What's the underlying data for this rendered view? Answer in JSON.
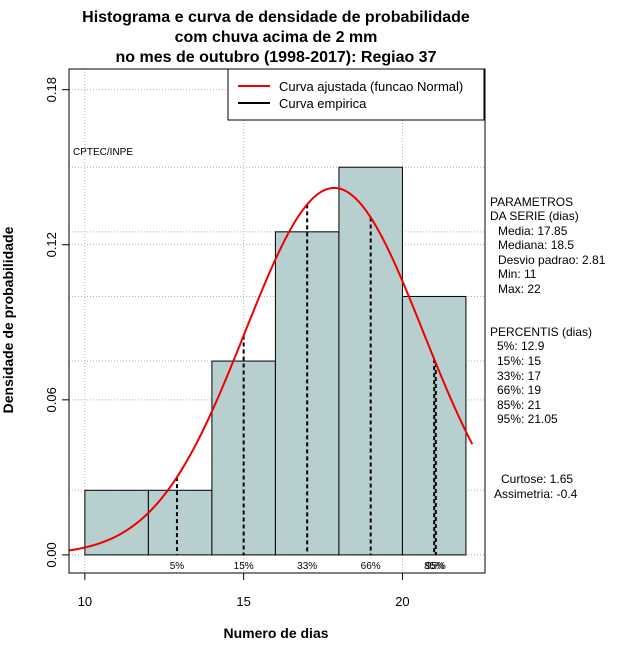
{
  "chart_data": {
    "type": "bar",
    "title": [
      "Histograma e curva de densidade de probabilidade",
      "com chuva acima de 2 mm",
      "no mes de outubro (1998-2017): Regiao 37"
    ],
    "xlabel": "Numero de dias",
    "ylabel": "Densidade de probabilidade",
    "xlim": [
      9.5,
      22.6
    ],
    "ylim": [
      -0.007,
      0.188
    ],
    "x_ticks": [
      10,
      15,
      20
    ],
    "y_ticks": [
      0.0,
      0.06,
      0.12,
      0.18
    ],
    "x_tick_labels": [
      "10",
      "15",
      "20"
    ],
    "y_tick_labels": [
      "0.00",
      "0.06",
      "0.12",
      "0.18"
    ],
    "grid": true,
    "bins": [
      {
        "from": 10,
        "to": 12,
        "density": 0.025
      },
      {
        "from": 12,
        "to": 14,
        "density": 0.025
      },
      {
        "from": 14,
        "to": 16,
        "density": 0.075
      },
      {
        "from": 16,
        "to": 18,
        "density": 0.125
      },
      {
        "from": 18,
        "to": 20,
        "density": 0.15
      },
      {
        "from": 20,
        "to": 22,
        "density": 0.1
      }
    ],
    "normal_curve": {
      "mean": 17.85,
      "sd": 2.81,
      "x_from": 9.5,
      "x_to": 22.2
    },
    "percentiles": [
      {
        "label": "5%",
        "x": 12.9
      },
      {
        "label": "15%",
        "x": 15
      },
      {
        "label": "33%",
        "x": 17
      },
      {
        "label": "66%",
        "x": 19
      },
      {
        "label": "85%",
        "x": 21
      },
      {
        "label": "95%",
        "x": 21.05
      }
    ],
    "legend": {
      "position": "top-right",
      "entries": [
        {
          "label": "Curva ajustada (funcao Normal)",
          "color": "#ee0000"
        },
        {
          "label": "Curva empirica",
          "color": "#000000"
        }
      ]
    },
    "annotation": "CPTEC/INPE",
    "colors": {
      "bar_fill": "#b7cfce",
      "normal_curve": "#ee0000",
      "grid": "#b0b0b0"
    }
  },
  "side_panel": {
    "params_title": [
      "PARAMETROS",
      "DA SERIE (dias)"
    ],
    "params": [
      "Media: 17.85",
      "Mediana: 18.5",
      "Desvio padrao: 2.81",
      "Min: 11",
      "Max: 22"
    ],
    "percentis_title": "PERCENTIS (dias)",
    "percentis": [
      "5%: 12.9",
      "15%: 15",
      "33%: 17",
      "66%: 19",
      "85%: 21",
      "95%: 21.05"
    ],
    "stats": [
      "Curtose: 1.65",
      "Assimetria: -0.4"
    ]
  }
}
